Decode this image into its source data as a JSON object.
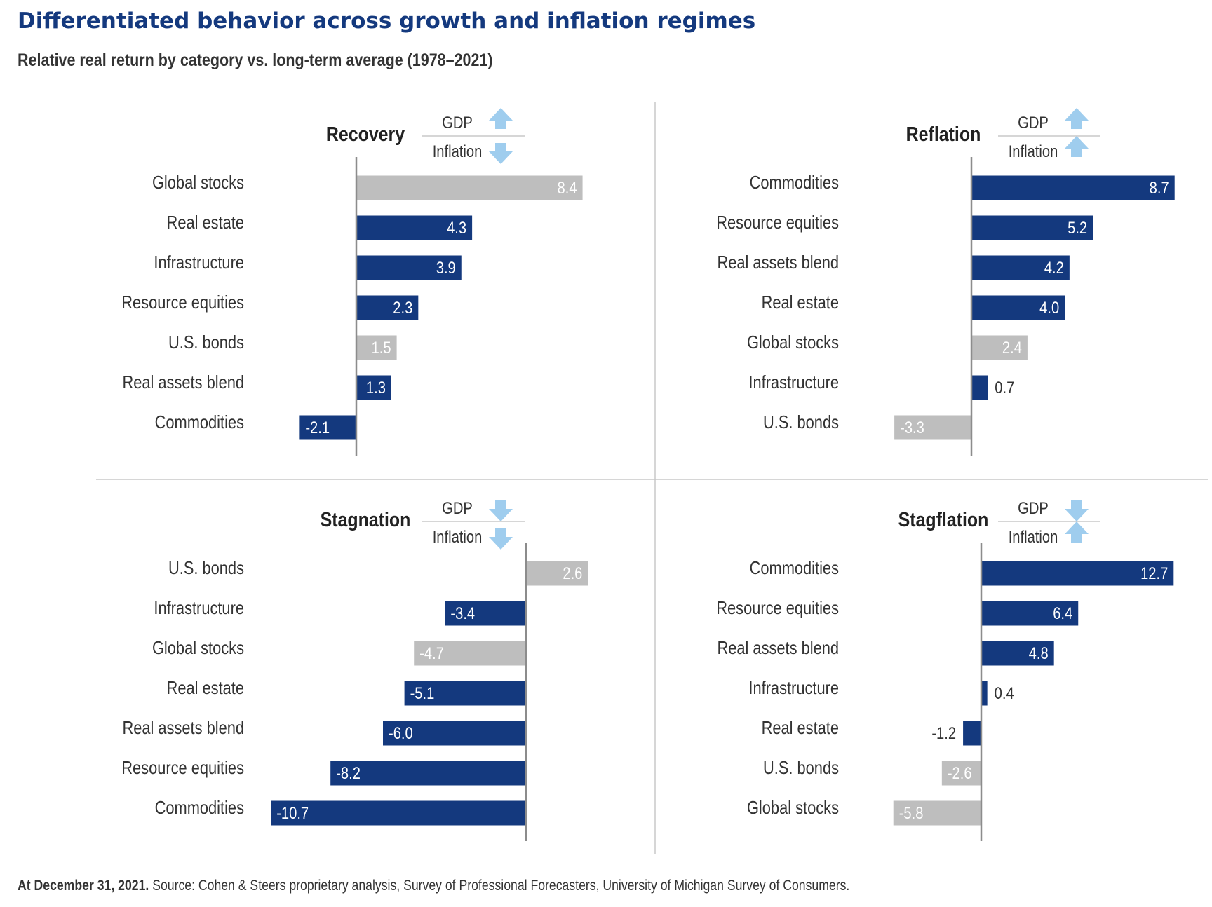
{
  "title": "Differentiated behavior across growth and inflation regimes",
  "subtitle": "Relative real return by category vs. long-term average (1978–2021)",
  "footnote": {
    "date": "At December 31, 2021.",
    "source": " Source: Cohen & Steers proprietary analysis, Survey of Professional Forecasters, University of Michigan Survey of Consumers."
  },
  "colors": {
    "real_asset": "#14397e",
    "traditional_asset": "#bebebe",
    "arrow": "#9fcdee",
    "axis": "#8c8c8c",
    "title": "#14397e",
    "text": "#333333"
  },
  "indicator_labels": {
    "gdp": "GDP",
    "inflation": "Inflation"
  },
  "chart_data": [
    {
      "type": "bar",
      "orientation": "horizontal",
      "title": "Recovery",
      "gdp": "up",
      "inflation": "down",
      "categories": [
        "Global stocks",
        "Real estate",
        "Infrastructure",
        "Resource equities",
        "U.S. bonds",
        "Real assets blend",
        "Commodities"
      ],
      "values": [
        8.4,
        4.3,
        3.9,
        2.3,
        1.5,
        1.3,
        -2.1
      ],
      "value_labels": [
        "8.4",
        "4.3",
        "3.9",
        "2.3",
        "1.5",
        "1.3",
        "-2.1"
      ]
    },
    {
      "type": "bar",
      "orientation": "horizontal",
      "title": "Reflation",
      "gdp": "up",
      "inflation": "up",
      "categories": [
        "Commodities",
        "Resource equities",
        "Real assets blend",
        "Real estate",
        "Global stocks",
        "Infrastructure",
        "U.S. bonds"
      ],
      "values": [
        8.7,
        5.2,
        4.2,
        4.0,
        2.4,
        0.7,
        -3.3
      ],
      "value_labels": [
        "8.7",
        "5.2",
        "4.2",
        "4.0",
        "2.4",
        "0.7",
        "-3.3"
      ]
    },
    {
      "type": "bar",
      "orientation": "horizontal",
      "title": "Stagnation",
      "gdp": "down",
      "inflation": "down",
      "categories": [
        "U.S. bonds",
        "Infrastructure",
        "Global stocks",
        "Real estate",
        "Real assets blend",
        "Resource equities",
        "Commodities"
      ],
      "values": [
        2.6,
        -3.4,
        -4.7,
        -5.1,
        -6.0,
        -8.2,
        -10.7
      ],
      "value_labels": [
        "2.6",
        "-3.4",
        "-4.7",
        "-5.1",
        "-6.0",
        "-8.2",
        "-10.7"
      ]
    },
    {
      "type": "bar",
      "orientation": "horizontal",
      "title": "Stagflation",
      "gdp": "down",
      "inflation": "up",
      "categories": [
        "Commodities",
        "Resource equities",
        "Real assets blend",
        "Infrastructure",
        "Real estate",
        "U.S. bonds",
        "Global stocks"
      ],
      "values": [
        12.7,
        6.4,
        4.8,
        0.4,
        -1.2,
        -2.6,
        -5.8
      ],
      "value_labels": [
        "12.7",
        "6.4",
        "4.8",
        "0.4",
        "-1.2",
        "-2.6",
        "-5.8"
      ]
    }
  ]
}
